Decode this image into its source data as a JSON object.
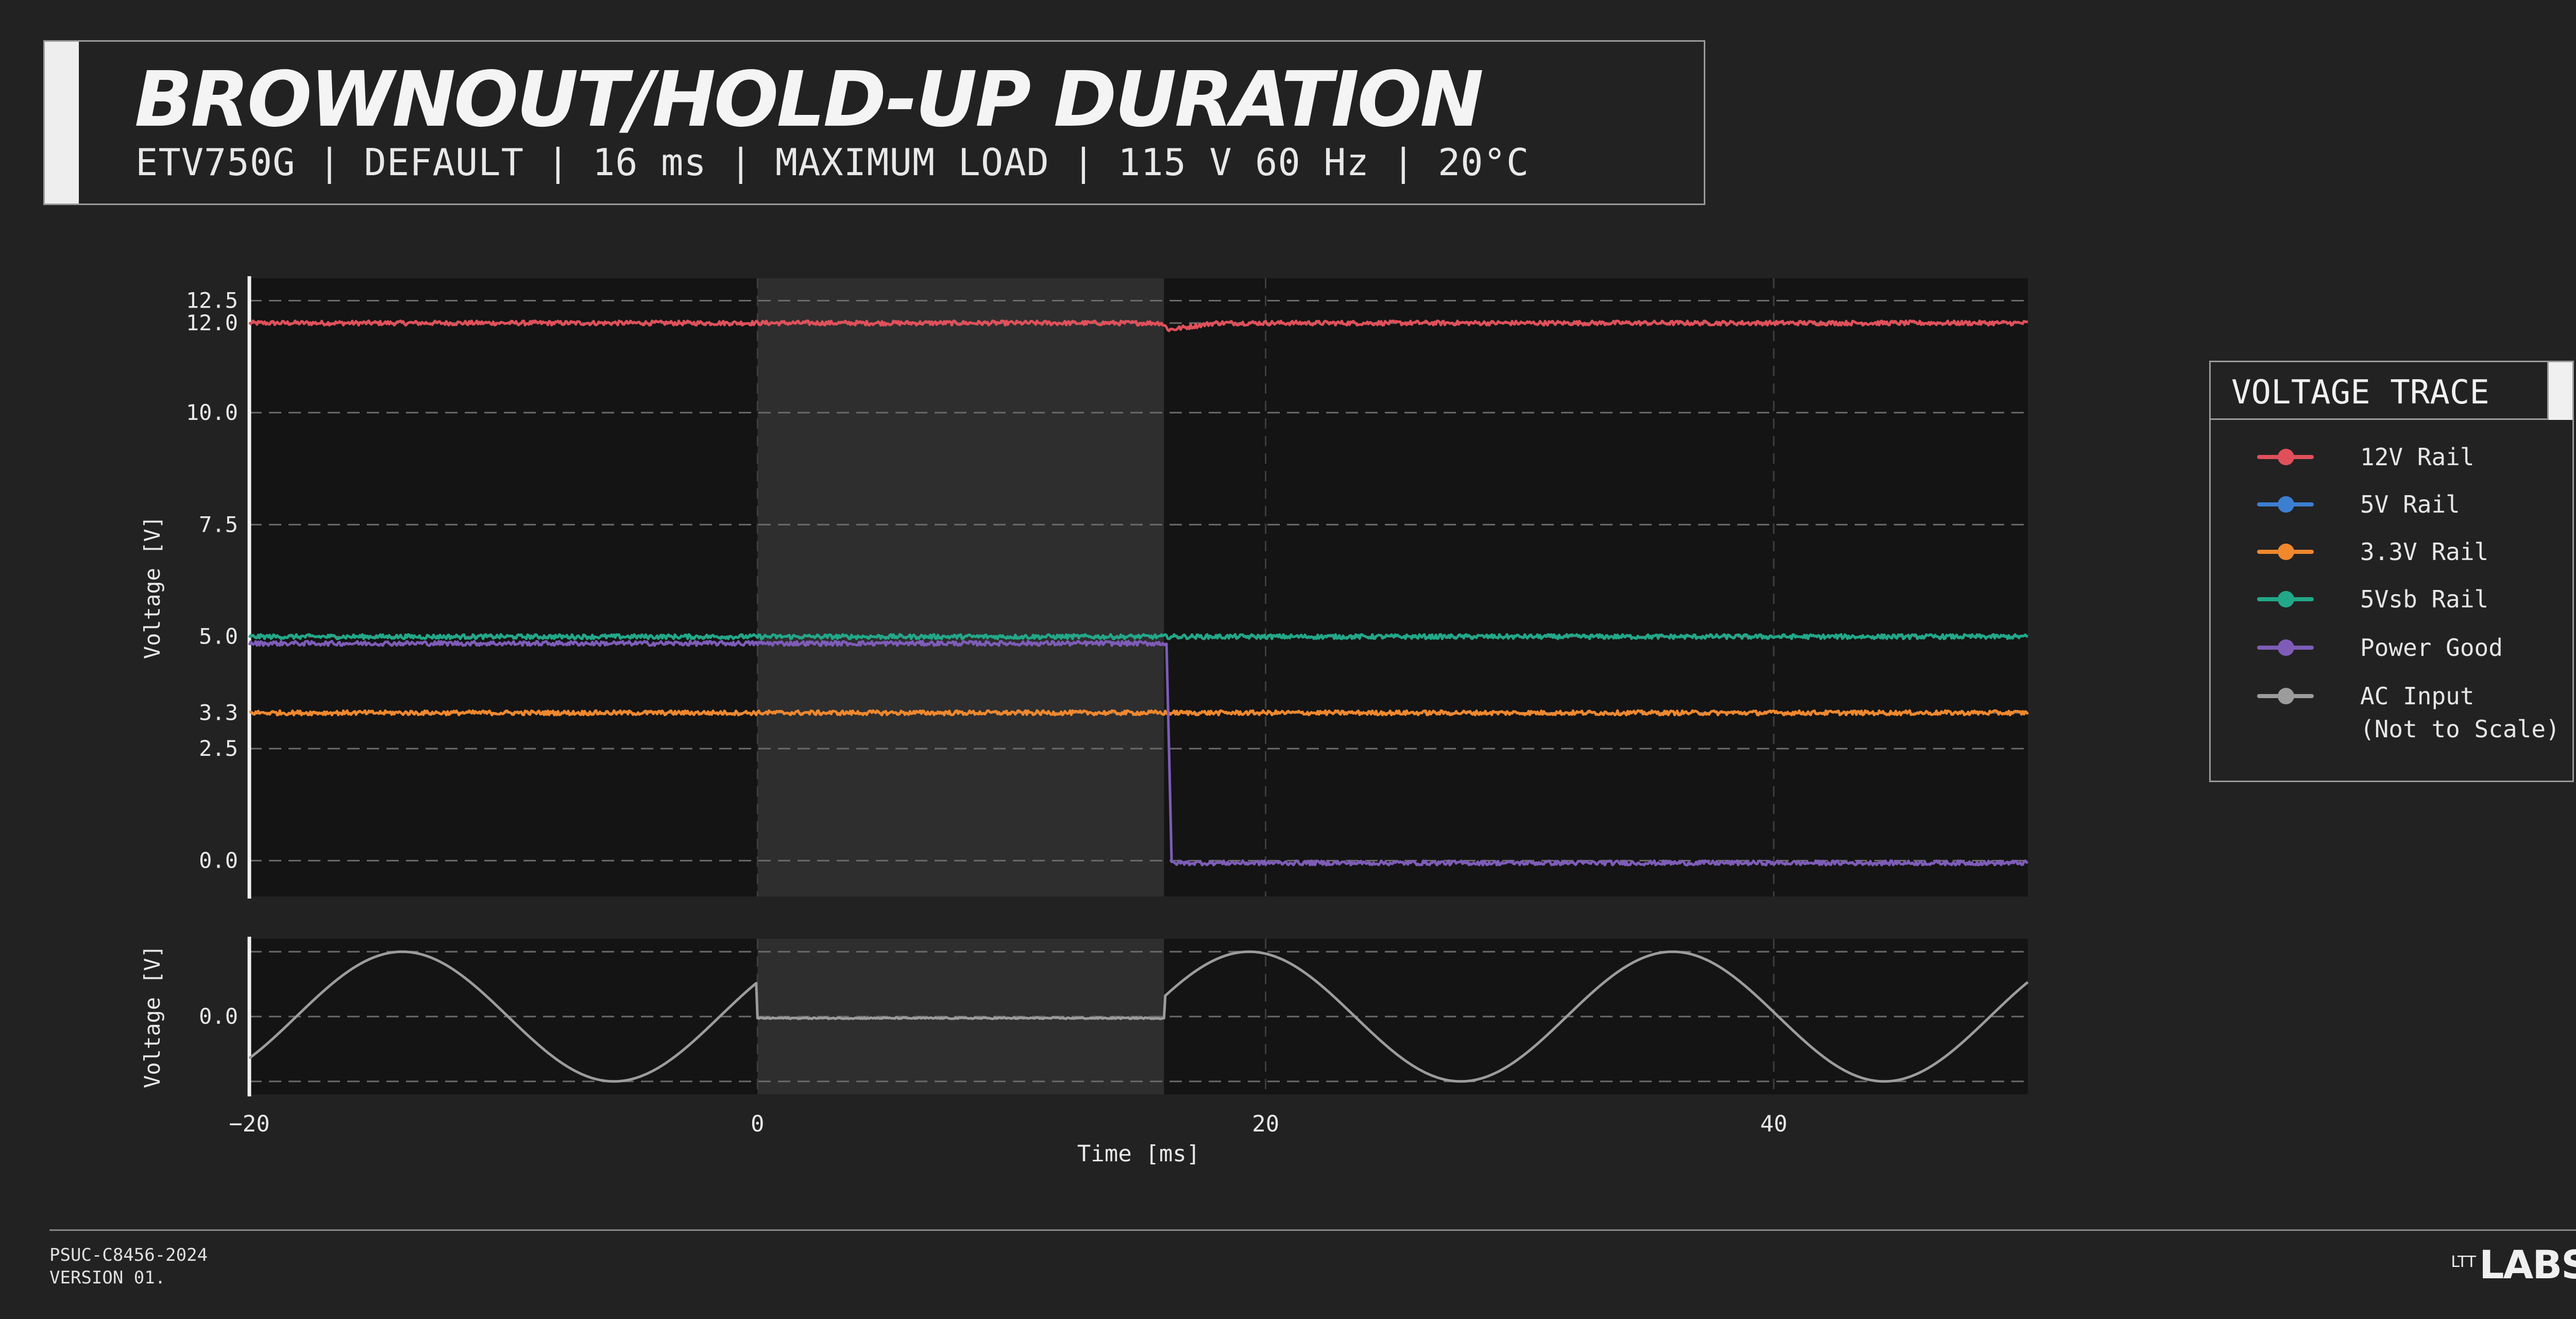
{
  "header": {
    "title": "BROWNOUT/HOLD-UP DURATION",
    "subtitle": "ETV750G | DEFAULT | 16 ms | MAXIMUM LOAD | 115 V 60 Hz | 20°C"
  },
  "legend": {
    "title": "VOLTAGE TRACE",
    "items": [
      {
        "label": "12V Rail",
        "color": "#e0505a"
      },
      {
        "label": "5V Rail",
        "color": "#3c7ed0"
      },
      {
        "label": "3.3V Rail",
        "color": "#f0882e"
      },
      {
        "label": "5Vsb Rail",
        "color": "#22a889"
      },
      {
        "label": "Power Good",
        "color": "#7e5cb8"
      },
      {
        "label": "AC Input\n(Not to Scale)",
        "color": "#9c9c9c"
      }
    ]
  },
  "footer": {
    "code": "PSUC-C8456-2024",
    "version": "VERSION 01.",
    "logo_small": "LTT",
    "logo_big": "LABS"
  },
  "chart_data": [
    {
      "type": "line",
      "panel": "top",
      "xlim": [
        -20,
        50
      ],
      "ylim": [
        -0.8,
        13.0
      ],
      "ylabel": "Voltage [V]",
      "yticks": [
        0.0,
        2.5,
        3.3,
        5.0,
        7.5,
        10.0,
        12.0,
        12.5
      ],
      "ytick_labels": [
        "0.0",
        "2.5",
        "3.3",
        "5.0",
        "7.5",
        "10.0",
        "12.0",
        "12.5"
      ],
      "grid": true,
      "shaded_x_range": [
        0,
        16
      ],
      "series": [
        {
          "name": "12V Rail",
          "color": "#e0505a",
          "x": [
            -20,
            15.9,
            16.2,
            18,
            50
          ],
          "y": [
            12.0,
            12.0,
            11.85,
            12.0,
            12.0
          ],
          "noise": 0.05
        },
        {
          "name": "5Vsb Rail",
          "color": "#22a889",
          "x": [
            -20,
            50
          ],
          "y": [
            5.0,
            5.0
          ],
          "noise": 0.05
        },
        {
          "name": "3.3V Rail",
          "color": "#f0882e",
          "x": [
            -20,
            50
          ],
          "y": [
            3.3,
            3.3
          ],
          "noise": 0.05
        },
        {
          "name": "Power Good",
          "color": "#7e5cb8",
          "x": [
            -20,
            16.1,
            16.3,
            50
          ],
          "y": [
            4.85,
            4.85,
            -0.05,
            -0.05
          ],
          "noise": 0.05
        }
      ]
    },
    {
      "type": "line",
      "panel": "bottom",
      "xlim": [
        -20,
        50
      ],
      "ylim": [
        -2.4,
        2.4
      ],
      "ylabel": "Voltage [V]",
      "xlabel": "Time [ms]",
      "xticks": [
        -20,
        0,
        20,
        40
      ],
      "xtick_labels": [
        "−20",
        "0",
        "20",
        "40"
      ],
      "yticks": [
        0.0
      ],
      "ytick_labels": [
        "0.0"
      ],
      "grid": true,
      "shaded_x_range": [
        0,
        16
      ],
      "series": [
        {
          "name": "AC Input (Not to Scale)",
          "color": "#9c9c9c",
          "amplitude": 2.0,
          "frequency_hz": 60,
          "dropout_ms": [
            0,
            16
          ],
          "dropout_level": -0.05
        }
      ]
    }
  ]
}
